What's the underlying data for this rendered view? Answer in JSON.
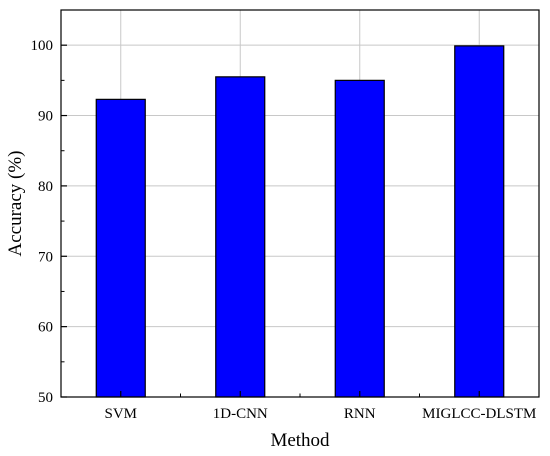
{
  "chart_data": {
    "type": "bar",
    "categories": [
      "SVM",
      "1D-CNN",
      "RNN",
      "MIGLCC-DLSTM"
    ],
    "values": [
      92.3,
      95.5,
      95.0,
      99.9
    ],
    "xlabel": "Method",
    "ylabel": "Accuracy (%)",
    "ylim": [
      50,
      105
    ],
    "yticks": [
      50,
      60,
      70,
      80,
      90,
      100
    ],
    "grid": true,
    "bar_color": "#0000ff",
    "edge_color": "#000000",
    "grid_color": "#c8c8c8"
  }
}
